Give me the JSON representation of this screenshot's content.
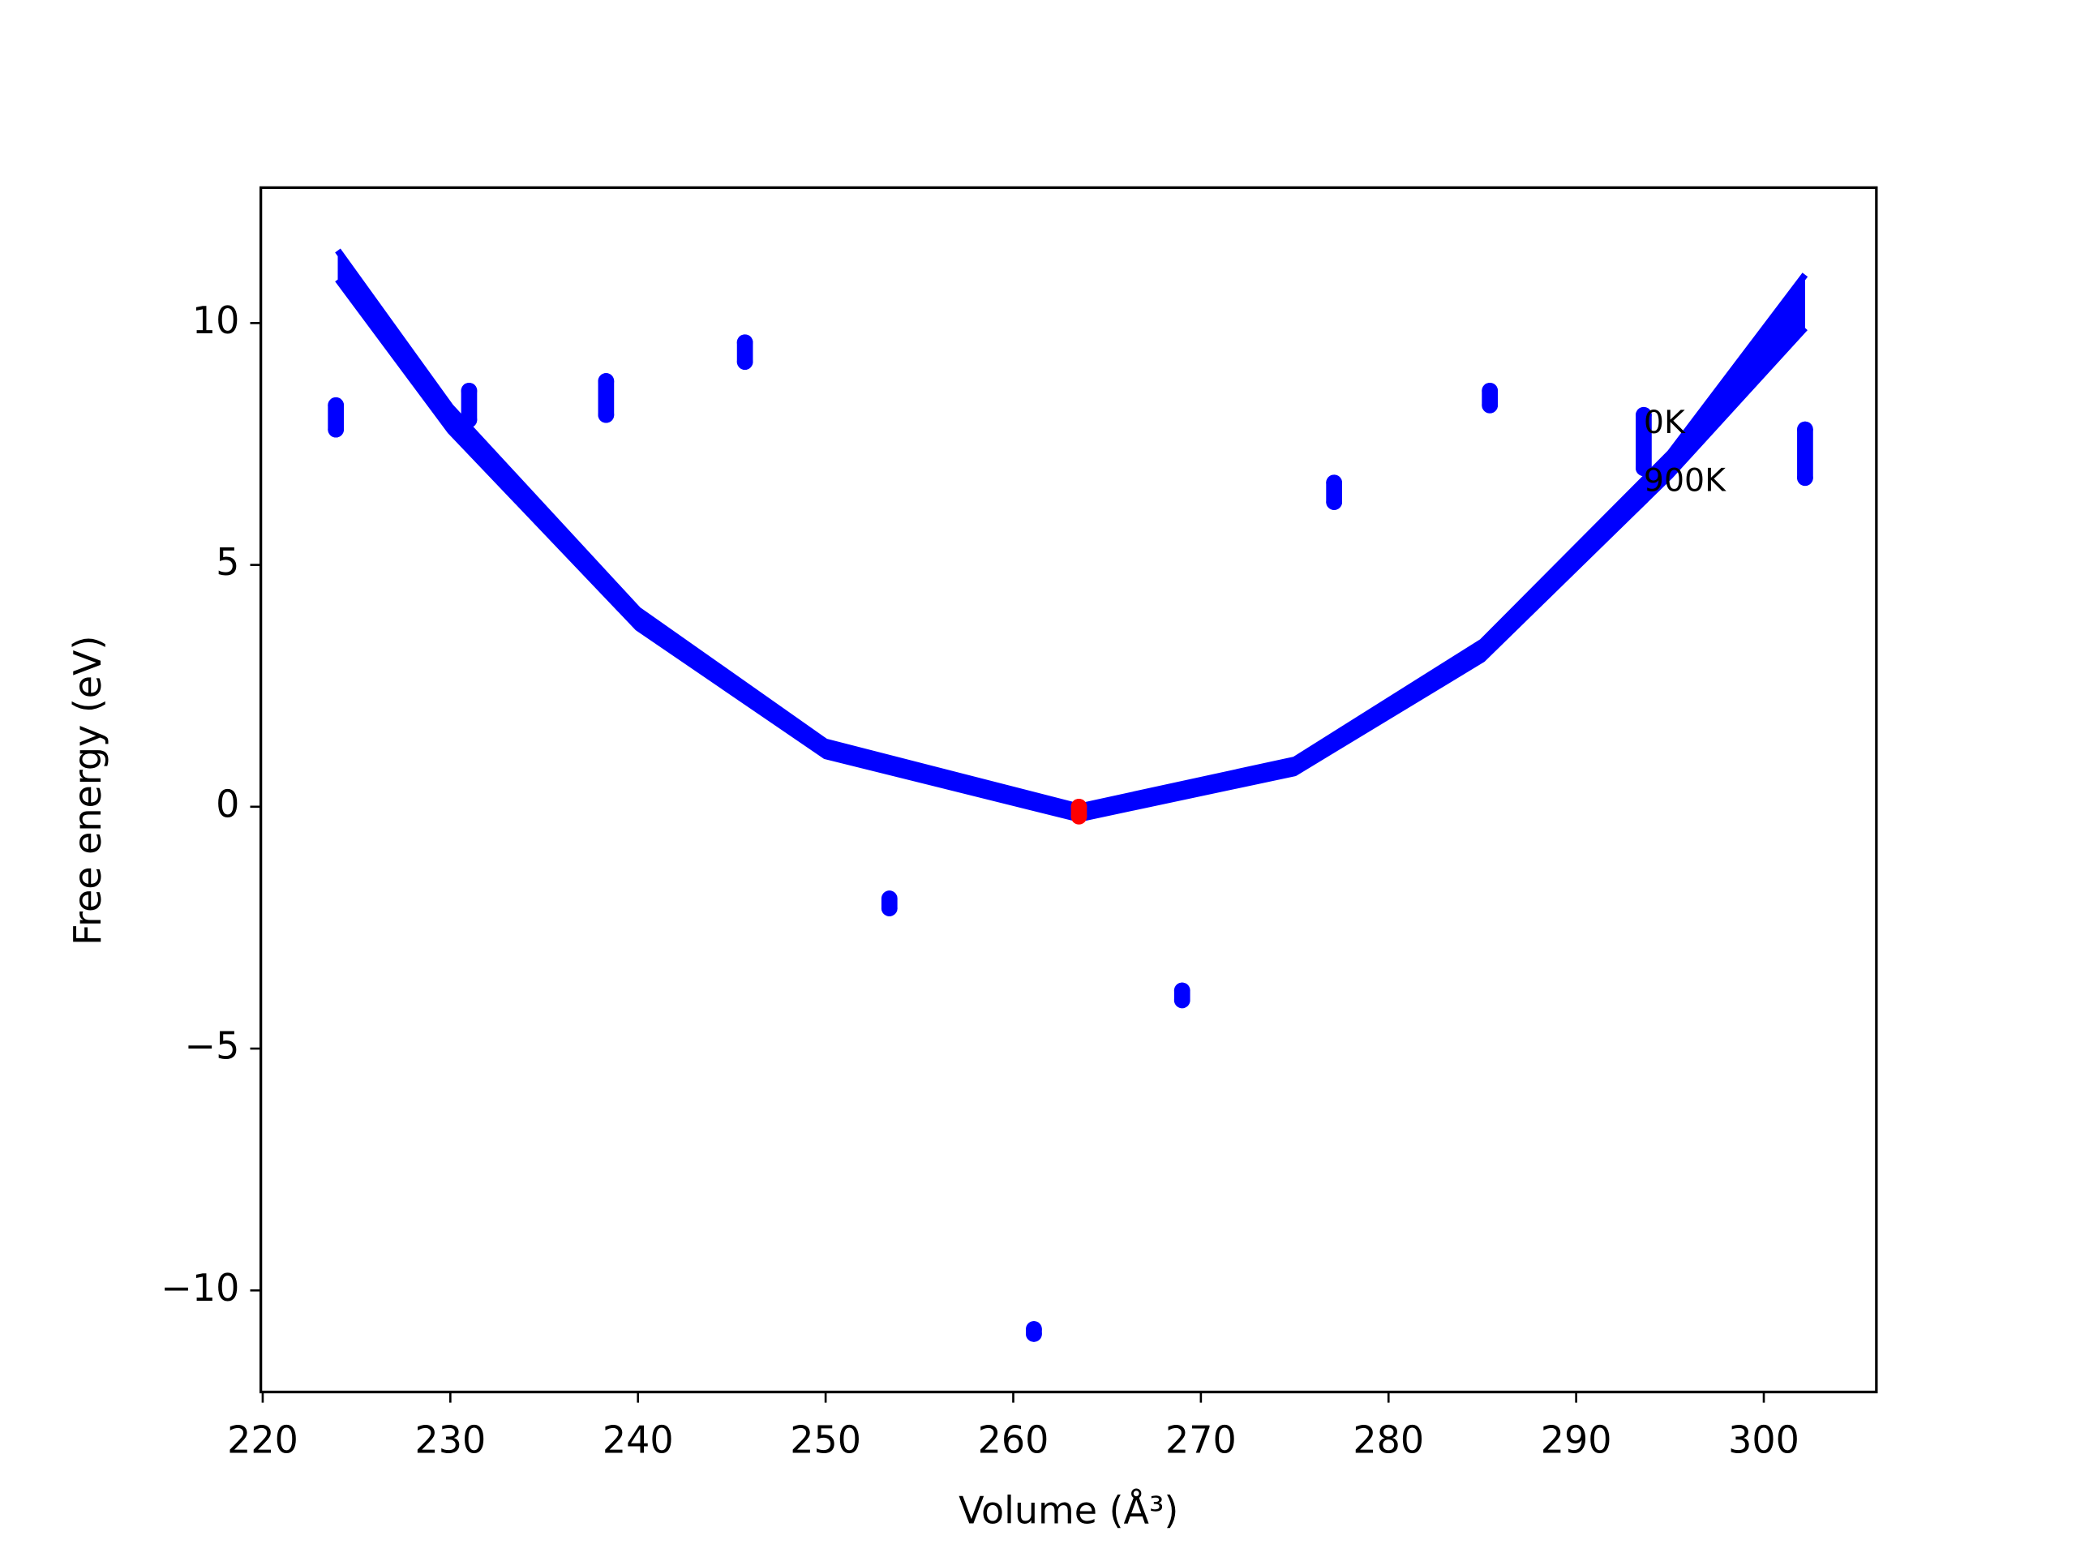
{
  "chart_data": {
    "type": "scatter",
    "xlabel": "Volume (Å³)",
    "ylabel": "Free energy (eV)",
    "xlim": [
      219.9,
      306.0
    ],
    "ylim": [
      -12.1,
      12.8
    ],
    "xticks": [
      220,
      230,
      240,
      250,
      260,
      270,
      280,
      290,
      300
    ],
    "yticks": [
      {
        "value": -10,
        "label": "−10"
      },
      {
        "value": -5,
        "label": "−5"
      },
      0,
      5,
      10
    ],
    "series": [
      {
        "color": "#0000ff",
        "x": [
          223.9,
          223.9,
          231.0,
          231.0,
          238.3,
          238.3,
          245.7,
          245.7,
          253.4,
          253.4,
          261.1,
          261.1,
          269.0,
          269.0,
          277.1,
          277.1,
          285.4,
          285.4,
          293.6,
          293.6,
          302.2,
          302.2
        ],
        "values": [
          8.3,
          7.8,
          8.6,
          8.0,
          8.8,
          8.1,
          9.6,
          9.2,
          -1.9,
          -2.1,
          -10.8,
          -10.9,
          -3.8,
          -4.0,
          6.7,
          6.3,
          8.6,
          8.3,
          8.1,
          7.0,
          7.8,
          6.8
        ]
      },
      {
        "color": "#ff0000",
        "x": [
          263.5,
          263.5
        ],
        "values": [
          0,
          -0.2
        ]
      }
    ],
    "curves": [
      {
        "color": "#0000ff",
        "x": [
          224,
          230,
          240,
          250,
          263.5,
          275,
          285,
          295,
          302.2
        ],
        "values": [
          11.5,
          8.27,
          4.07,
          1.34,
          0,
          0.97,
          3.41,
          7.31,
          11.0
        ]
      },
      {
        "color": "#0000ff",
        "x": [
          224,
          230,
          240,
          250,
          263.5,
          275,
          285,
          295,
          302.2
        ],
        "values": [
          10.9,
          7.77,
          3.7,
          1.05,
          -0.25,
          0.7,
          3.05,
          6.84,
          9.9
        ]
      }
    ],
    "annotations": [
      {
        "text": "0K",
        "x": 293.6,
        "y": 7.9
      },
      {
        "text": "900K",
        "x": 293.6,
        "y": 6.7
      }
    ]
  }
}
